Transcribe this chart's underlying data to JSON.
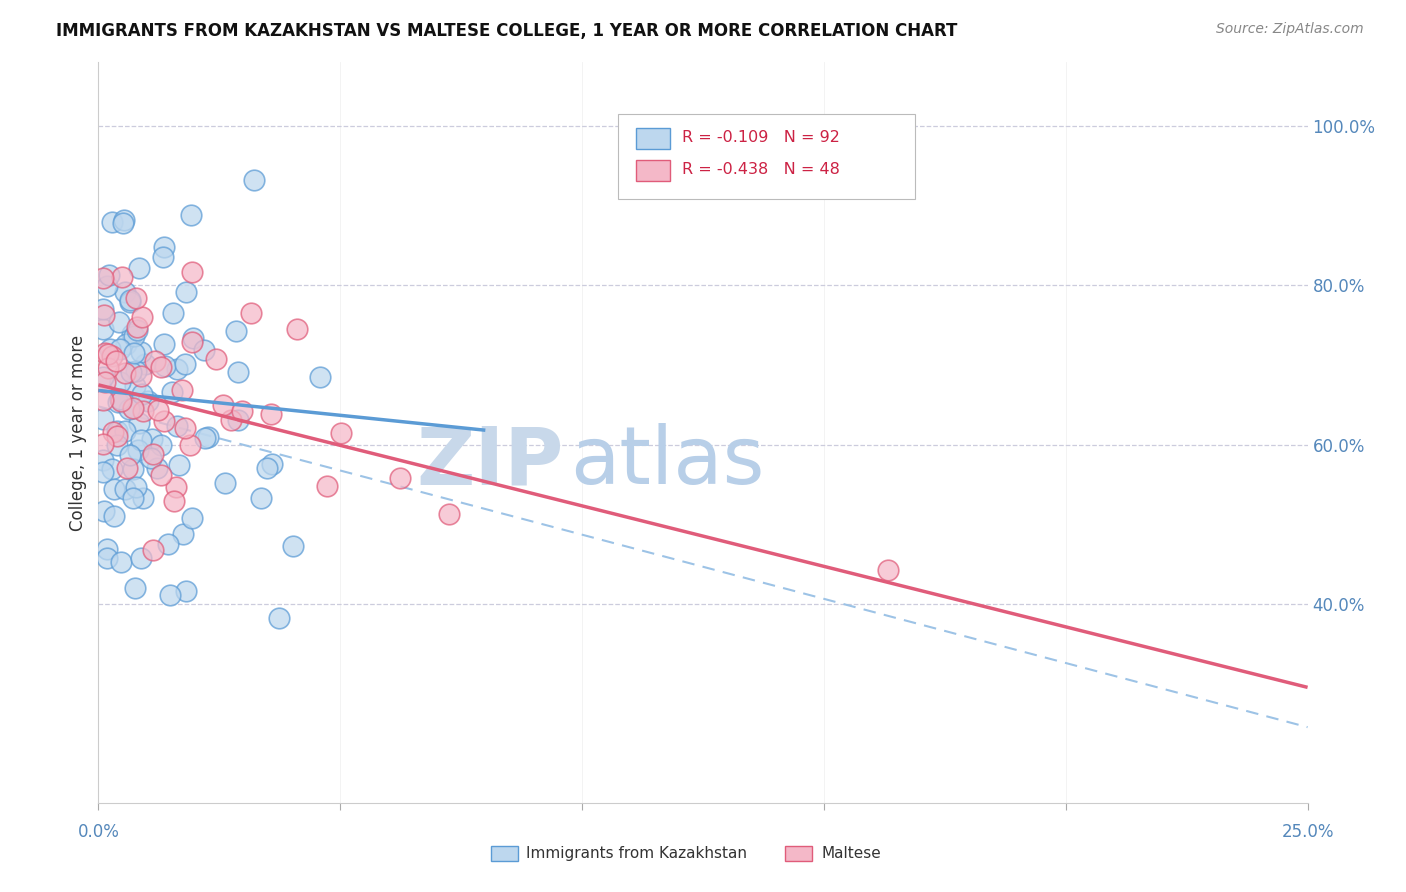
{
  "title": "IMMIGRANTS FROM KAZAKHSTAN VS MALTESE COLLEGE, 1 YEAR OR MORE CORRELATION CHART",
  "source": "Source: ZipAtlas.com",
  "ylabel": "College, 1 year or more",
  "right_yticks": [
    "100.0%",
    "80.0%",
    "60.0%",
    "40.0%"
  ],
  "right_ytick_vals": [
    1.0,
    0.8,
    0.6,
    0.4
  ],
  "xlim": [
    0.0,
    0.25
  ],
  "ylim": [
    0.15,
    1.08
  ],
  "blue_line_x0": 0.0,
  "blue_line_x1": 0.08,
  "blue_line_y0": 0.668,
  "blue_line_y1": 0.618,
  "pink_line_x0": 0.0,
  "pink_line_x1": 0.25,
  "pink_line_y0": 0.675,
  "pink_line_y1": 0.295,
  "dash_line_x0": 0.0,
  "dash_line_x1": 0.25,
  "dash_line_y0": 0.648,
  "dash_line_y1": 0.245,
  "blue_color": "#5b9bd5",
  "blue_face_color": "#bdd7ee",
  "pink_color": "#e05c7a",
  "pink_face_color": "#f4b8c8",
  "dash_color": "#9dc3e6",
  "grid_color": "#ccccdd",
  "watermark_zip_color": "#c8d8ea",
  "watermark_atlas_color": "#b8cfe8",
  "legend_r1": "R = -0.109",
  "legend_n1": "N = 92",
  "legend_r2": "R = -0.438",
  "legend_n2": "N = 48",
  "bottom_label1": "Immigrants from Kazakhstan",
  "bottom_label2": "Maltese"
}
